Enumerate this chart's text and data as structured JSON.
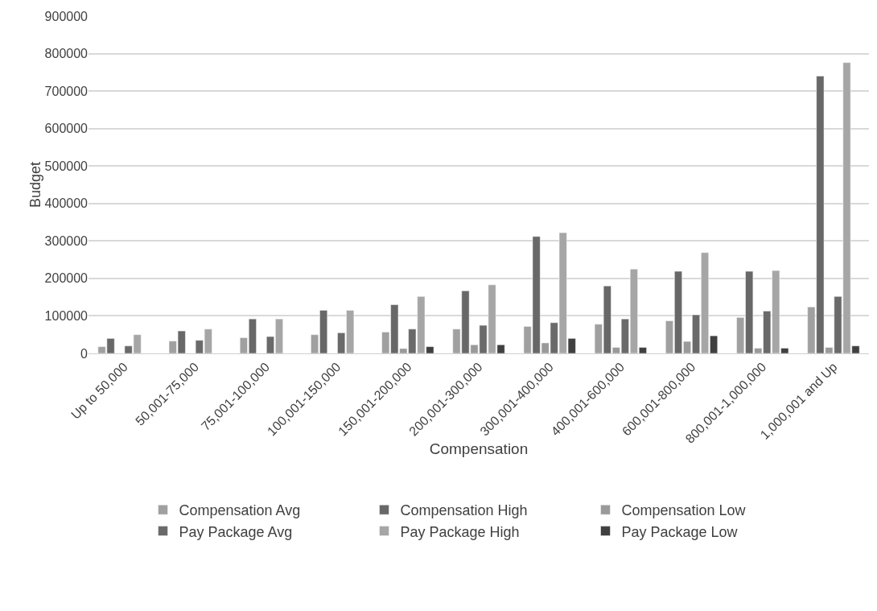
{
  "chart_data": {
    "type": "bar",
    "xlabel": "Compensation",
    "ylabel": "Budget",
    "categories": [
      "Up to 50,000",
      "50,001-75,000",
      "75,001-100,000",
      "100,001-150,000",
      "150,001-200,000",
      "200,001-300,000",
      "300,001-400,000",
      "400,001-600,000",
      "600,001-800,000",
      "800,001-1,000,000",
      "1,000,001 and Up"
    ],
    "series": [
      {
        "name": "Compensation Avg",
        "color": "#a0a0a0",
        "values": [
          18000,
          33000,
          42000,
          50000,
          57000,
          65000,
          72000,
          78000,
          87000,
          96000,
          124000
        ]
      },
      {
        "name": "Compensation High",
        "color": "#686868",
        "values": [
          40000,
          60000,
          92000,
          115000,
          130000,
          167000,
          312000,
          180000,
          219000,
          219000,
          740000
        ]
      },
      {
        "name": "Compensation Low",
        "color": "#9a9a9a",
        "values": [
          null,
          null,
          null,
          null,
          13000,
          23000,
          28000,
          16000,
          32000,
          14000,
          16000
        ]
      },
      {
        "name": "Pay Package Avg",
        "color": "#6a6a6a",
        "values": [
          20000,
          35000,
          45000,
          55000,
          65000,
          75000,
          82000,
          92000,
          103000,
          113000,
          152000
        ]
      },
      {
        "name": "Pay Package High",
        "color": "#a6a6a6",
        "values": [
          50000,
          65000,
          92000,
          115000,
          152000,
          183000,
          322000,
          225000,
          269000,
          221000,
          776000
        ]
      },
      {
        "name": "Pay Package Low",
        "color": "#404040",
        "values": [
          null,
          null,
          null,
          null,
          18000,
          23000,
          40000,
          16000,
          47000,
          14000,
          20000
        ]
      }
    ],
    "ylim": [
      0,
      900000
    ],
    "yticks": [
      0,
      100000,
      200000,
      300000,
      400000,
      500000,
      600000,
      700000,
      800000,
      900000
    ],
    "grid": "y",
    "legend": "bottom"
  }
}
